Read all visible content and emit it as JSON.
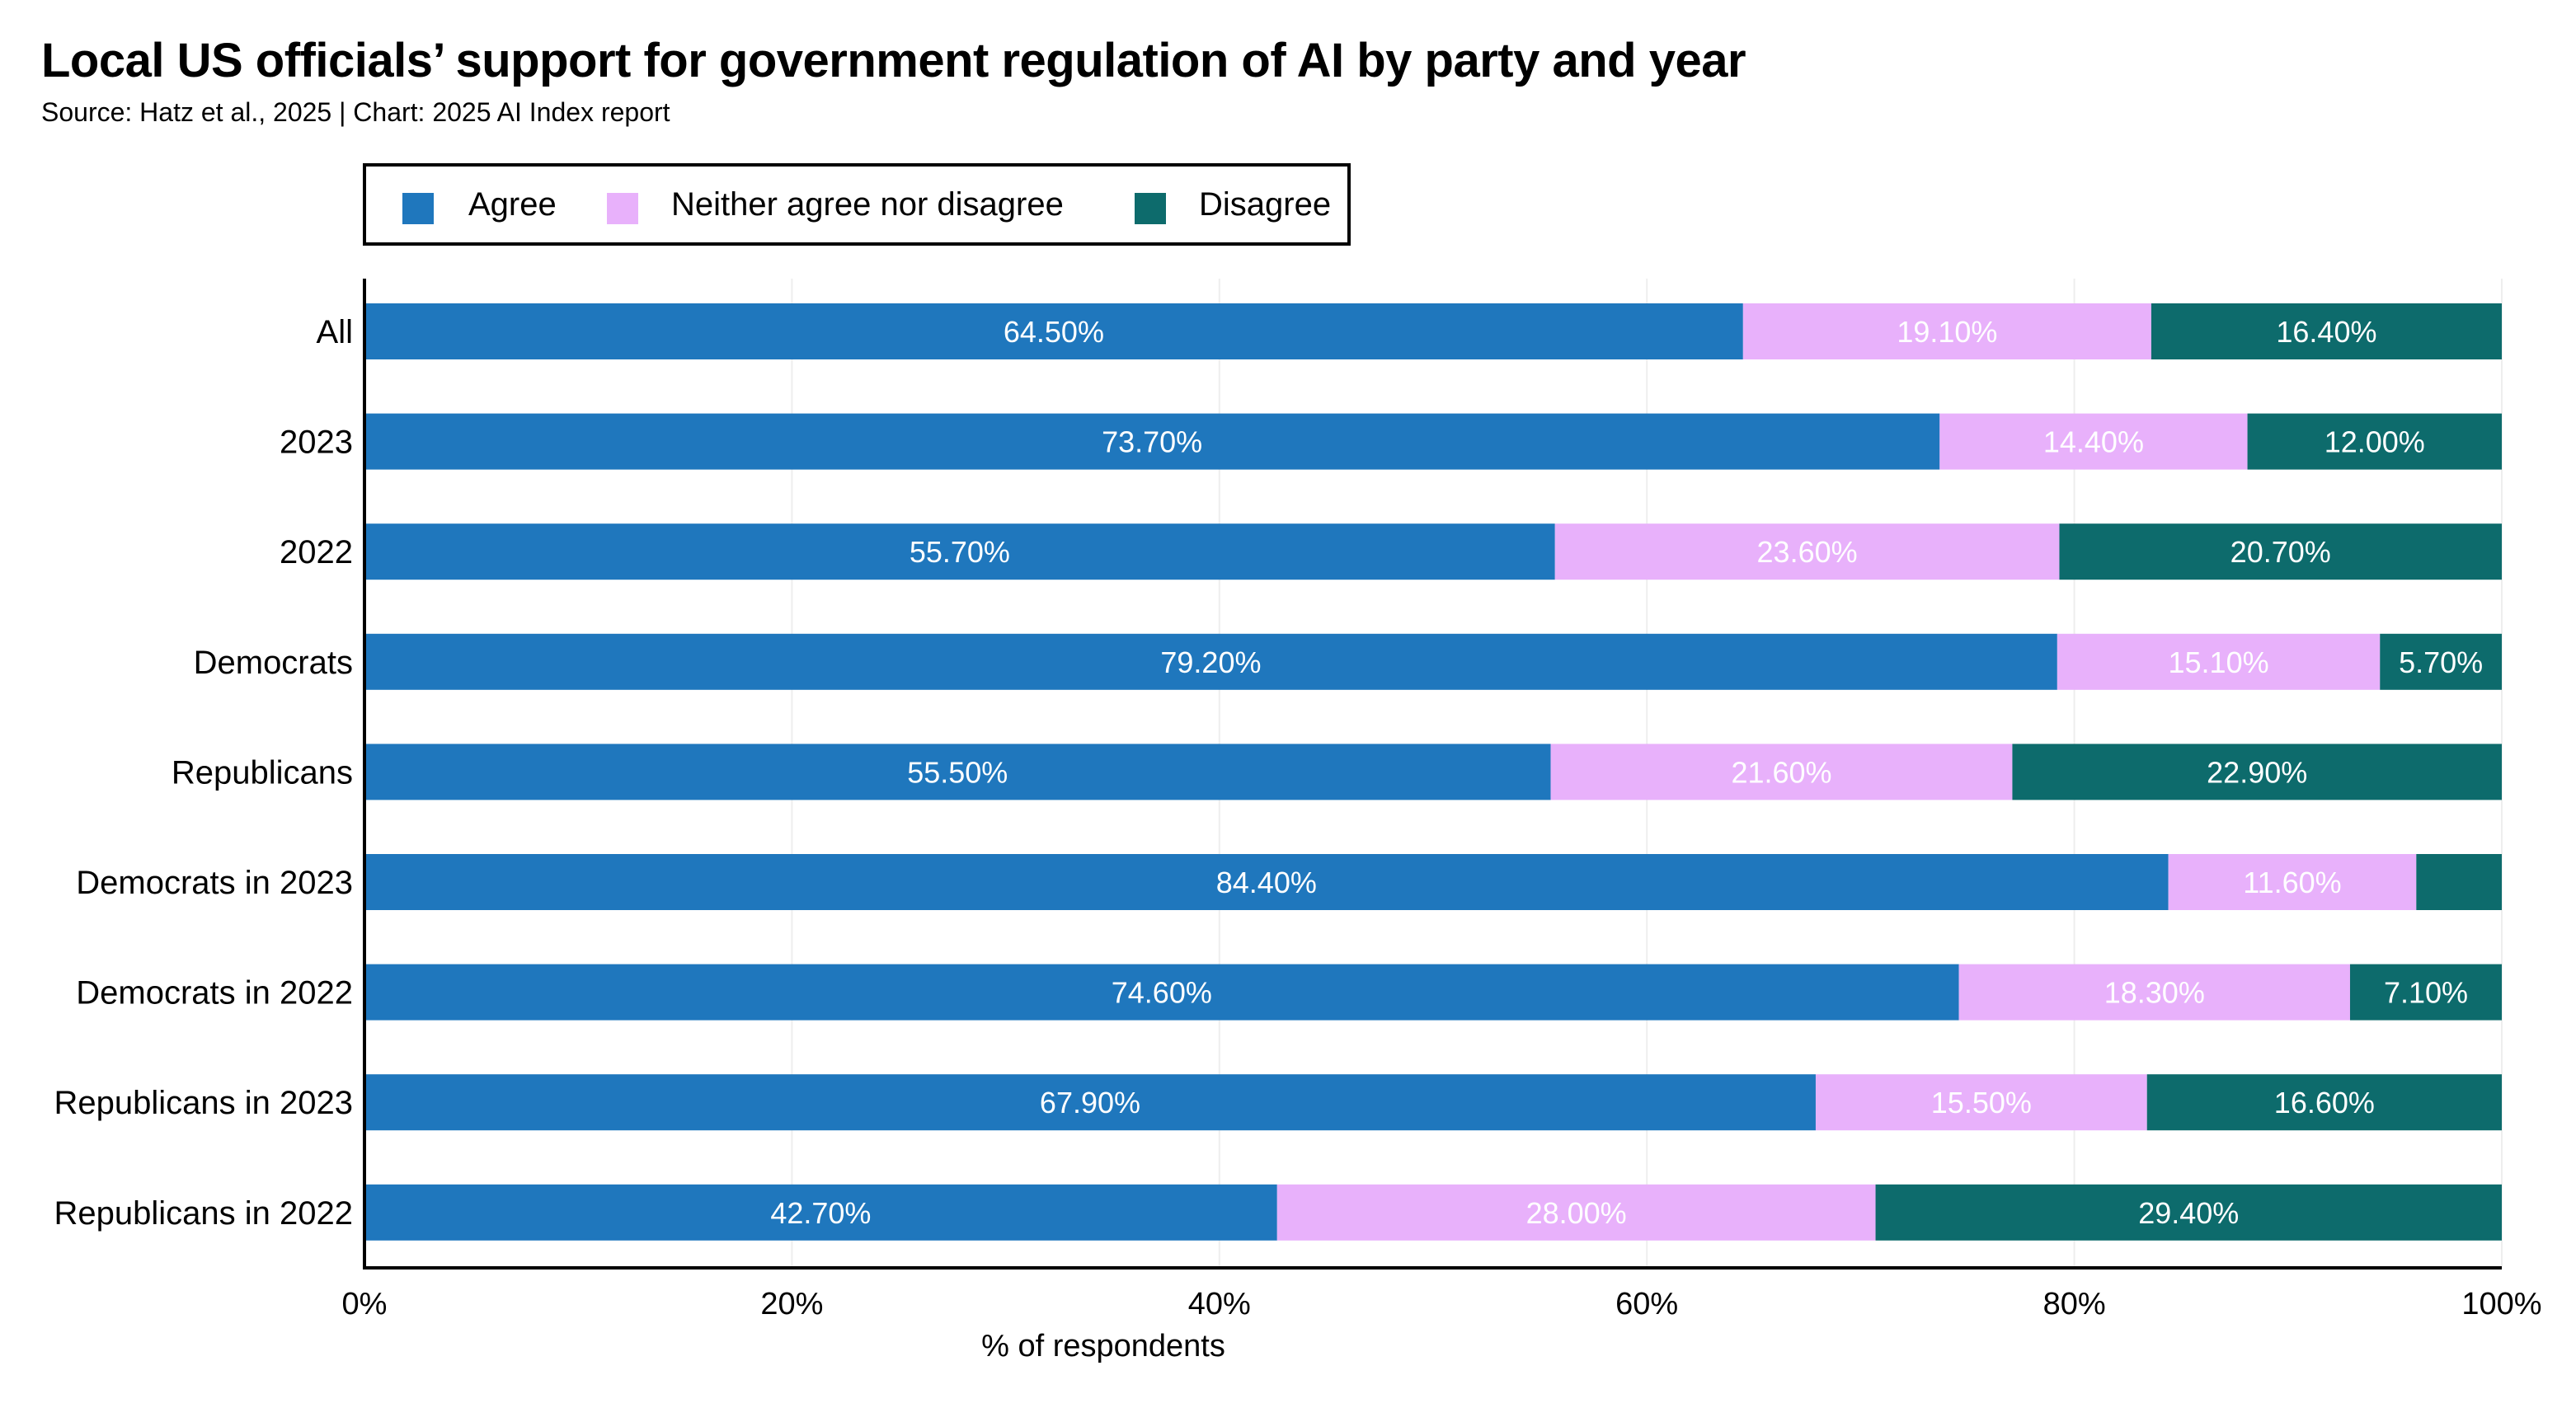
{
  "title": "Local US officials’ support for government regulation of AI by party and year",
  "subtitle": "Source: Hatz et al., 2025 | Chart: 2025 AI Index report",
  "colors": {
    "agree": "#1f77bd",
    "neither": "#e8b1fb",
    "disagree": "#0d6b6c",
    "axis": "#000000",
    "grid": "#eeeeee"
  },
  "legend": [
    {
      "label": "Agree",
      "key": "agree"
    },
    {
      "label": "Neither agree nor disagree",
      "key": "neither"
    },
    {
      "label": "Disagree",
      "key": "disagree"
    }
  ],
  "chart_data": {
    "type": "bar",
    "orientation": "horizontal",
    "stacked": true,
    "categories": [
      "All",
      "2023",
      "2022",
      "Democrats",
      "Republicans",
      "Democrats in 2023",
      "Democrats in 2022",
      "Republicans in 2023",
      "Republicans in 2022"
    ],
    "series": [
      {
        "name": "Agree",
        "key": "agree",
        "values": [
          64.5,
          73.7,
          55.7,
          79.2,
          55.5,
          84.4,
          74.6,
          67.9,
          42.7
        ],
        "labels": [
          "64.50%",
          "73.70%",
          "55.70%",
          "79.20%",
          "55.50%",
          "84.40%",
          "74.60%",
          "67.90%",
          "42.70%"
        ]
      },
      {
        "name": "Neither agree nor disagree",
        "key": "neither",
        "values": [
          19.1,
          14.4,
          23.6,
          15.1,
          21.6,
          11.6,
          18.3,
          15.5,
          28.0
        ],
        "labels": [
          "19.10%",
          "14.40%",
          "23.60%",
          "15.10%",
          "21.60%",
          "11.60%",
          "18.30%",
          "15.50%",
          "28.00%"
        ]
      },
      {
        "name": "Disagree",
        "key": "disagree",
        "values": [
          16.4,
          12.0,
          20.7,
          5.7,
          22.9,
          4.0,
          7.1,
          16.6,
          29.4
        ],
        "labels": [
          "16.40%",
          "12.00%",
          "20.70%",
          "5.70%",
          "22.90%",
          "",
          "7.10%",
          "16.60%",
          "29.40%"
        ]
      }
    ],
    "xlabel": "% of respondents",
    "xlim": [
      0,
      100
    ],
    "xticks": [
      0,
      20,
      40,
      60,
      80,
      100
    ],
    "xtick_labels": [
      "0%",
      "20%",
      "40%",
      "60%",
      "80%",
      "100%"
    ],
    "grid": true,
    "legend_position": "top-left"
  }
}
